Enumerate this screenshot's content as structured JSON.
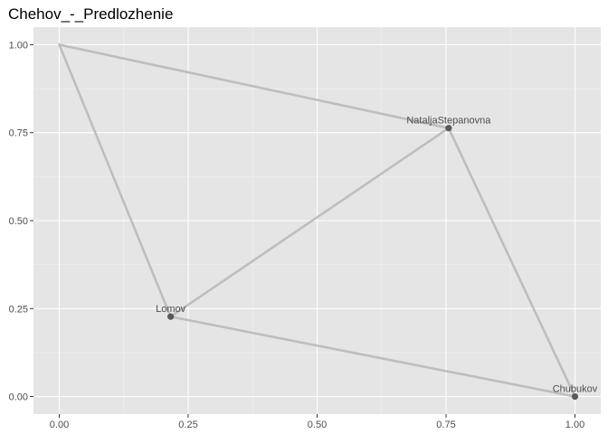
{
  "chart_data": {
    "type": "network",
    "title": "Chehov_-_Predlozhenie",
    "xlim": [
      -0.05,
      1.05
    ],
    "ylim": [
      -0.05,
      1.05
    ],
    "x_ticks": [
      0,
      0.25,
      0.5,
      0.75,
      1
    ],
    "x_tick_labels": [
      "0.00",
      "0.25",
      "0.50",
      "0.75",
      "1.00"
    ],
    "y_ticks": [
      0,
      0.25,
      0.5,
      0.75,
      1
    ],
    "y_tick_labels": [
      "0.00",
      "0.25",
      "0.50",
      "0.75",
      "1.00"
    ],
    "grid": true,
    "nodes": [
      {
        "id": "A",
        "label": "",
        "x": 0.0,
        "y": 1.0
      },
      {
        "id": "NatalјaStepanovna",
        "label": "NataljaStepanovna",
        "x": 0.755,
        "y": 0.763
      },
      {
        "id": "Lomov",
        "label": "Lomov",
        "x": 0.216,
        "y": 0.227
      },
      {
        "id": "Chubukov",
        "label": "Chubukov",
        "x": 1.0,
        "y": 0.0
      }
    ],
    "edges": [
      {
        "from": "A",
        "to": "NatalјaStepanovna"
      },
      {
        "from": "A",
        "to": "Lomov"
      },
      {
        "from": "NatalјaStepanovna",
        "to": "Lomov"
      },
      {
        "from": "NatalјaStepanovna",
        "to": "Chubukov"
      },
      {
        "from": "Lomov",
        "to": "Chubukov"
      }
    ],
    "colors": {
      "panel_background": "#e5e5e5",
      "grid_major": "#ffffff",
      "edge": "#bebebe",
      "node": "#595959"
    }
  }
}
